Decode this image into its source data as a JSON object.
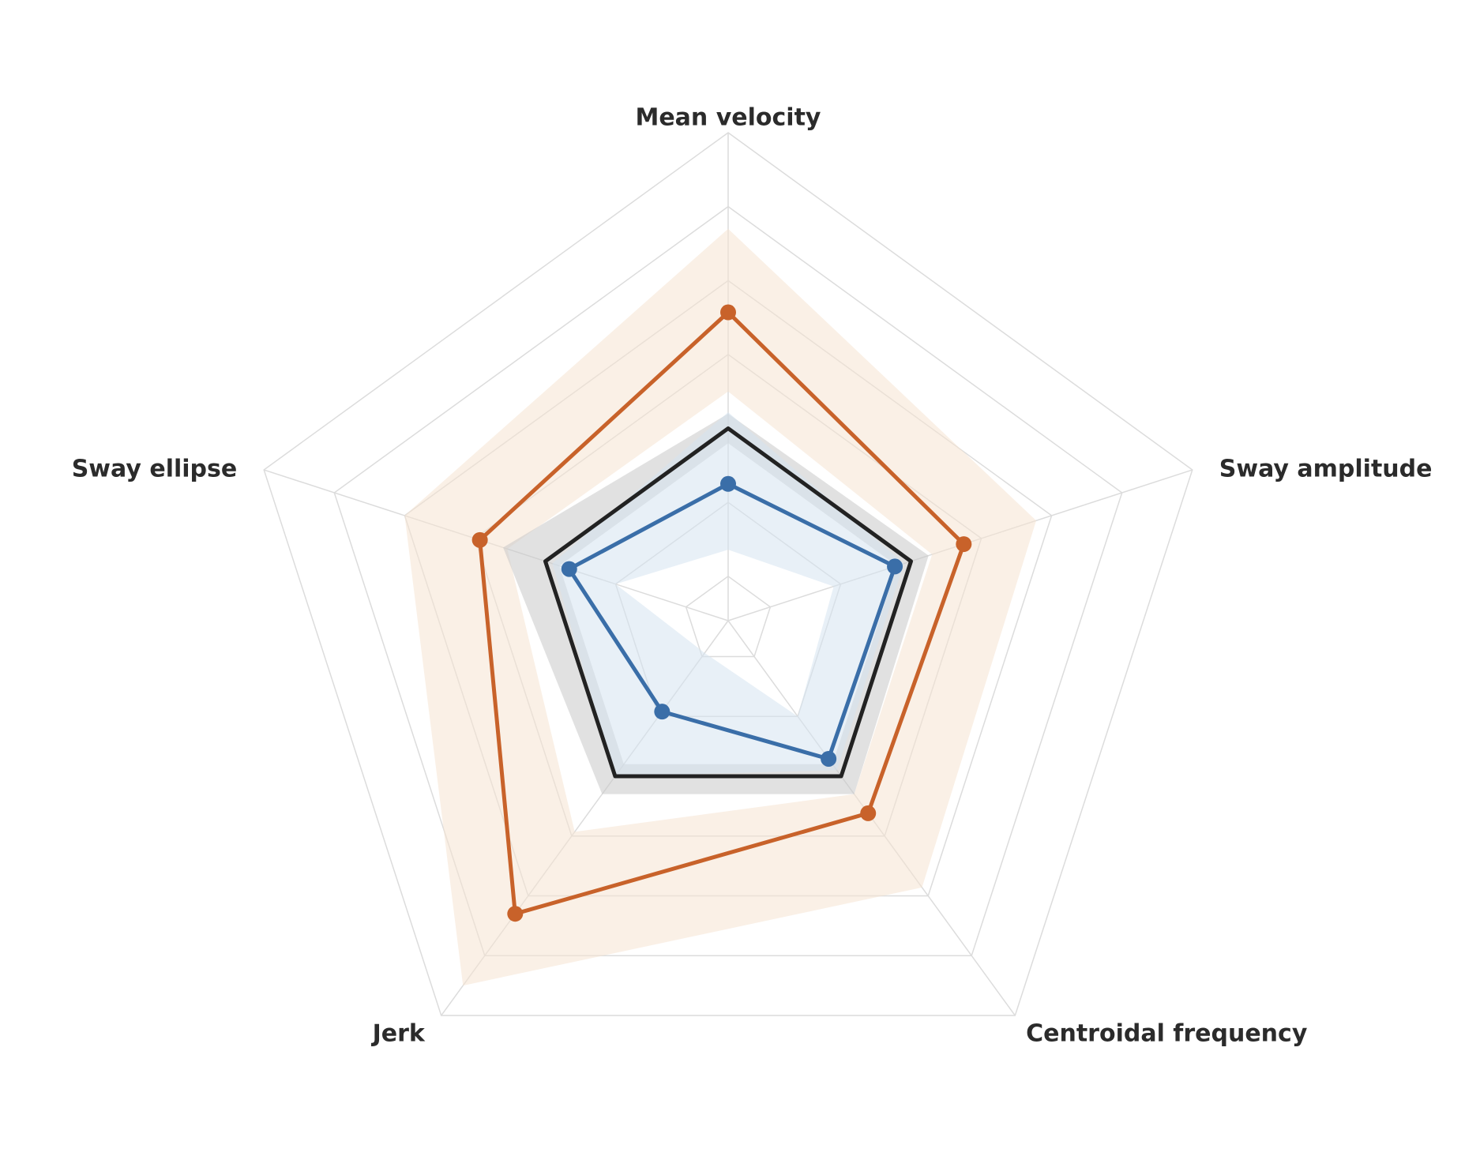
{
  "chart_data": {
    "type": "radar",
    "categories": [
      "Mean velocity",
      "Sway amplitude",
      "Centroidal frequency",
      "Jerk",
      "Sway ellipse"
    ],
    "rlim": [
      -0.6,
      6
    ],
    "rticks": [
      0,
      1,
      2,
      3,
      4,
      5,
      6
    ],
    "grid": true,
    "series": [
      {
        "color": "#c8622a",
        "values": [
          3.57,
          2.75,
          2.62,
          4.3,
          2.93
        ],
        "band_low": [
          2.5,
          2.3,
          2.3,
          2.93,
          2.54
        ],
        "band_high": [
          4.7,
          3.78,
          3.86,
          5.5,
          4.0
        ],
        "band_color": "#f5e3d2"
      },
      {
        "color": "#222222",
        "values": [
          2,
          2,
          2,
          2,
          2
        ],
        "band_low": [
          1.8,
          1.8,
          1.8,
          1.8,
          1.8
        ],
        "band_high": [
          2.2,
          2.25,
          2.3,
          2.3,
          2.6
        ],
        "band_color": "#c9c9c9"
      },
      {
        "color": "#3a6ea8",
        "values": [
          1.25,
          1.77,
          1.71,
          0.92,
          1.66
        ],
        "band_low": [
          0.36,
          0.9,
          1.0,
          -0.06,
          1.0
        ],
        "band_high": [
          2.22,
          1.9,
          1.9,
          2.0,
          1.9
        ],
        "band_color": "#d6e3f0"
      }
    ]
  }
}
